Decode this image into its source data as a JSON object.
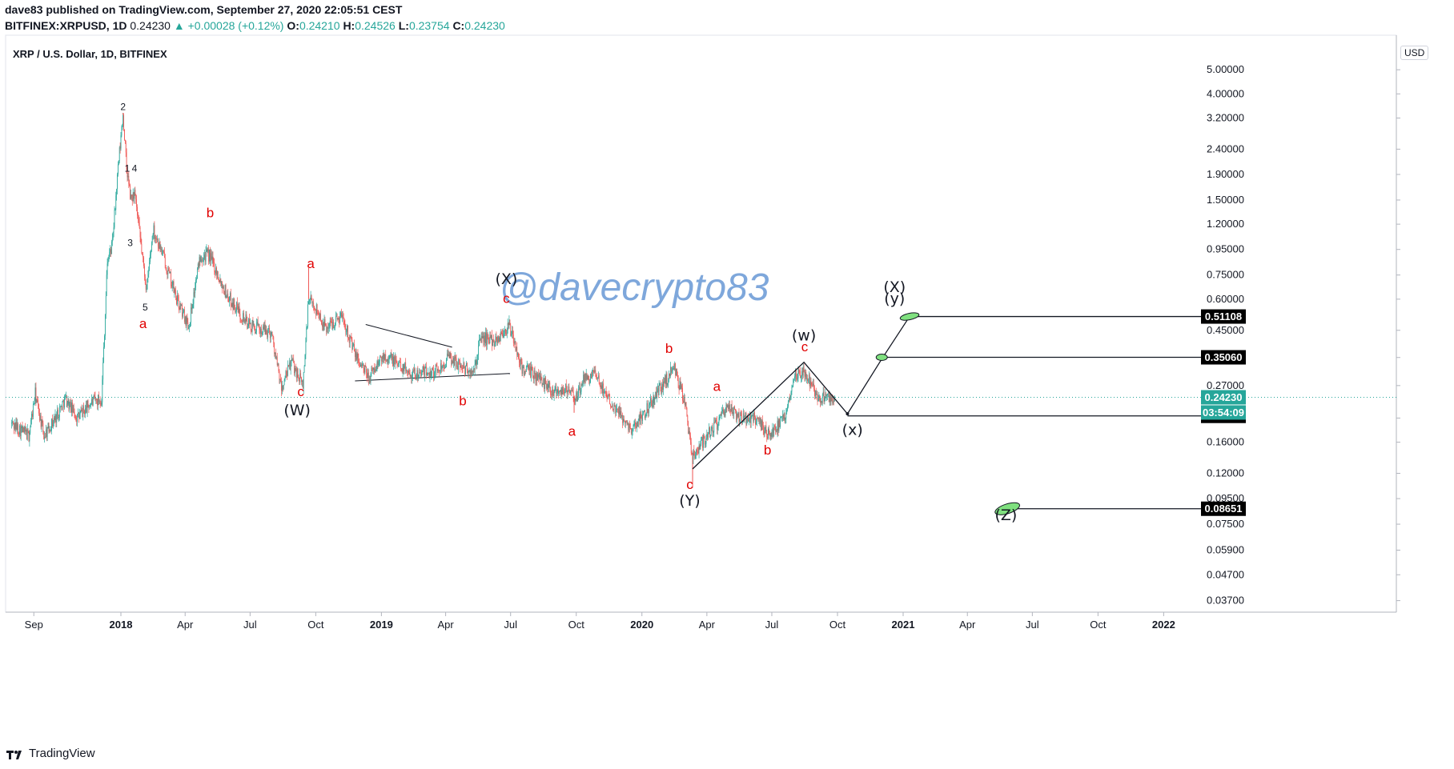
{
  "header": {
    "publisher_line": "dave83 published on TradingView.com, September 27, 2020 22:05:51 CEST",
    "symbol": "BITFINEX:XRPUSD, 1D",
    "last": "0.24230",
    "change": "▲ +0.00028 (+0.12%)",
    "o_label": "O:",
    "o": "0.24210",
    "h_label": "H:",
    "h": "0.24526",
    "l_label": "L:",
    "l": "0.23754",
    "c_label": "C:",
    "c": "0.24230"
  },
  "footer": {
    "brand": "TradingView"
  },
  "currency_badge": "USD",
  "watermark": "@davecrypto83",
  "colors": {
    "up": "#26a69a",
    "down": "#ef5350",
    "label_red": "#e00000",
    "ellipse": "#7fe07f"
  },
  "chart_data": {
    "type": "candlestick",
    "title": "XRP / U.S. Dollar, 1D, BITFINEX",
    "y_scale": "log",
    "ylim": [
      0.03,
      6.5
    ],
    "y_ticks": [
      "5.00000",
      "4.00000",
      "3.20000",
      "2.40000",
      "1.90000",
      "1.50000",
      "1.20000",
      "0.95000",
      "0.75000",
      "0.60000",
      "0.45000",
      "0.35000",
      "0.27000",
      "0.20000",
      "0.16000",
      "0.12000",
      "0.09500",
      "0.07500",
      "0.05900",
      "0.04700",
      "0.03700"
    ],
    "x_ticks": [
      "Sep",
      "2018",
      "Apr",
      "Jul",
      "Oct",
      "2019",
      "Apr",
      "Jul",
      "Oct",
      "2020",
      "Apr",
      "Jul",
      "Oct",
      "2021",
      "Apr",
      "Jul",
      "Oct",
      "2022"
    ],
    "x_range": [
      "2017-08-01",
      "2022-04-15"
    ],
    "price_path": [
      [
        "2017-08-01",
        0.19
      ],
      [
        "2017-08-25",
        0.17
      ],
      [
        "2017-09-03",
        0.25
      ],
      [
        "2017-09-15",
        0.17
      ],
      [
        "2017-10-01",
        0.2
      ],
      [
        "2017-10-15",
        0.24
      ],
      [
        "2017-11-01",
        0.2
      ],
      [
        "2017-11-20",
        0.23
      ],
      [
        "2017-12-05",
        0.24
      ],
      [
        "2017-12-13",
        0.85
      ],
      [
        "2017-12-20",
        1.0
      ],
      [
        "2017-12-28",
        2.0
      ],
      [
        "2018-01-04",
        3.3
      ],
      [
        "2018-01-09",
        2.0
      ],
      [
        "2018-01-15",
        1.5
      ],
      [
        "2018-01-20",
        1.6
      ],
      [
        "2018-02-06",
        0.65
      ],
      [
        "2018-02-15",
        1.15
      ],
      [
        "2018-03-01",
        0.9
      ],
      [
        "2018-03-20",
        0.6
      ],
      [
        "2018-04-06",
        0.47
      ],
      [
        "2018-04-22",
        0.9
      ],
      [
        "2018-05-05",
        0.9
      ],
      [
        "2018-05-30",
        0.62
      ],
      [
        "2018-06-30",
        0.47
      ],
      [
        "2018-07-31",
        0.44
      ],
      [
        "2018-08-14",
        0.26
      ],
      [
        "2018-08-28",
        0.34
      ],
      [
        "2018-09-13",
        0.27
      ],
      [
        "2018-09-21",
        0.6
      ],
      [
        "2018-10-01",
        0.55
      ],
      [
        "2018-10-15",
        0.46
      ],
      [
        "2018-11-07",
        0.52
      ],
      [
        "2018-11-25",
        0.36
      ],
      [
        "2018-12-14",
        0.29
      ],
      [
        "2019-01-05",
        0.36
      ],
      [
        "2019-02-15",
        0.3
      ],
      [
        "2019-03-20",
        0.31
      ],
      [
        "2019-04-05",
        0.35
      ],
      [
        "2019-05-10",
        0.3
      ],
      [
        "2019-05-20",
        0.42
      ],
      [
        "2019-06-10",
        0.41
      ],
      [
        "2019-06-29",
        0.47
      ],
      [
        "2019-07-16",
        0.32
      ],
      [
        "2019-08-10",
        0.29
      ],
      [
        "2019-08-28",
        0.26
      ],
      [
        "2019-09-18",
        0.26
      ],
      [
        "2019-10-01",
        0.24
      ],
      [
        "2019-10-10",
        0.28
      ],
      [
        "2019-10-25",
        0.3
      ],
      [
        "2019-11-25",
        0.22
      ],
      [
        "2019-12-18",
        0.18
      ],
      [
        "2020-01-14",
        0.23
      ],
      [
        "2020-02-15",
        0.32
      ],
      [
        "2020-03-01",
        0.23
      ],
      [
        "2020-03-12",
        0.14
      ],
      [
        "2020-03-25",
        0.16
      ],
      [
        "2020-04-15",
        0.19
      ],
      [
        "2020-04-30",
        0.22
      ],
      [
        "2020-05-20",
        0.2
      ],
      [
        "2020-06-10",
        0.2
      ],
      [
        "2020-06-27",
        0.17
      ],
      [
        "2020-07-20",
        0.2
      ],
      [
        "2020-08-01",
        0.3
      ],
      [
        "2020-08-15",
        0.31
      ],
      [
        "2020-09-05",
        0.24
      ],
      [
        "2020-09-20",
        0.24
      ],
      [
        "2020-09-27",
        0.2423
      ]
    ],
    "current_price": {
      "value": 0.2423,
      "label": "0.24230",
      "countdown": "03:54:09"
    },
    "price_levels": [
      {
        "value": 0.51108,
        "label": "0.51108"
      },
      {
        "value": 0.3506,
        "label": "0.35060"
      },
      {
        "value": 0.20404,
        "label": "0.20404"
      },
      {
        "value": 0.08651,
        "label": "0.08651"
      }
    ],
    "wave_labels": [
      {
        "text": "2",
        "date": "2018-01-04",
        "price": 3.45,
        "style": "sm"
      },
      {
        "text": "4",
        "date": "2018-01-20",
        "price": 1.95,
        "style": "sm"
      },
      {
        "text": "1",
        "date": "2018-01-10",
        "price": 1.95,
        "style": "sm"
      },
      {
        "text": "3",
        "date": "2018-01-14",
        "price": 0.98,
        "style": "sm"
      },
      {
        "text": "5",
        "date": "2018-02-04",
        "price": 0.54,
        "style": "sm"
      },
      {
        "text": "a",
        "date": "2018-02-01",
        "price": 0.46,
        "style": "red"
      },
      {
        "text": "b",
        "date": "2018-05-06",
        "price": 1.28,
        "style": "red"
      },
      {
        "text": "a",
        "date": "2018-09-24",
        "price": 0.8,
        "style": "red"
      },
      {
        "text": "c",
        "date": "2018-09-10",
        "price": 0.245,
        "style": "red"
      },
      {
        "text": "(W)",
        "date": "2018-09-05",
        "price": 0.205,
        "style": "blk"
      },
      {
        "text": "(X)",
        "date": "2019-06-25",
        "price": 0.69,
        "style": "blk"
      },
      {
        "text": "c",
        "date": "2019-06-25",
        "price": 0.58,
        "style": "red"
      },
      {
        "text": "b",
        "date": "2019-04-25",
        "price": 0.225,
        "style": "red"
      },
      {
        "text": "a",
        "date": "2019-09-25",
        "price": 0.17,
        "style": "red"
      },
      {
        "text": "b",
        "date": "2020-02-08",
        "price": 0.365,
        "style": "red"
      },
      {
        "text": "c",
        "date": "2020-03-08",
        "price": 0.104,
        "style": "red"
      },
      {
        "text": "(Y)",
        "date": "2020-03-08",
        "price": 0.089,
        "style": "blk"
      },
      {
        "text": "a",
        "date": "2020-04-15",
        "price": 0.257,
        "style": "red"
      },
      {
        "text": "b",
        "date": "2020-06-25",
        "price": 0.143,
        "style": "red"
      },
      {
        "text": "(w)",
        "date": "2020-08-15",
        "price": 0.41,
        "style": "blk"
      },
      {
        "text": "c",
        "date": "2020-08-16",
        "price": 0.37,
        "style": "red"
      },
      {
        "text": "(x)",
        "date": "2020-10-22",
        "price": 0.171,
        "style": "blk"
      },
      {
        "text": "(X)",
        "date": "2020-12-20",
        "price": 0.64,
        "style": "blk"
      },
      {
        "text": "(y)",
        "date": "2020-12-20",
        "price": 0.575,
        "style": "blk"
      },
      {
        "text": "(Z)",
        "date": "2021-05-25",
        "price": 0.078,
        "style": "blk"
      }
    ],
    "projection_path": [
      [
        "2020-03-12",
        0.125
      ],
      [
        "2020-08-15",
        0.335
      ],
      [
        "2020-10-15",
        0.208
      ],
      [
        "2020-12-02",
        0.345
      ],
      [
        "2021-01-10",
        0.51108
      ]
    ],
    "triangle_lines": [
      [
        [
          "2018-12-10",
          0.475
        ],
        [
          "2019-04-10",
          0.385
        ]
      ],
      [
        [
          "2018-11-25",
          0.282
        ],
        [
          "2019-06-30",
          0.302
        ]
      ]
    ],
    "targets": [
      {
        "date": "2021-01-10",
        "price": 0.51108,
        "to": "2022-04-15"
      },
      {
        "date": "2020-12-02",
        "price": 0.3506,
        "to": "2022-04-15"
      },
      {
        "date": "2020-10-15",
        "price": 0.20404,
        "to": "2022-04-15"
      },
      {
        "date": "2021-06-03",
        "price": 0.08651,
        "to": "2022-04-15"
      }
    ]
  }
}
